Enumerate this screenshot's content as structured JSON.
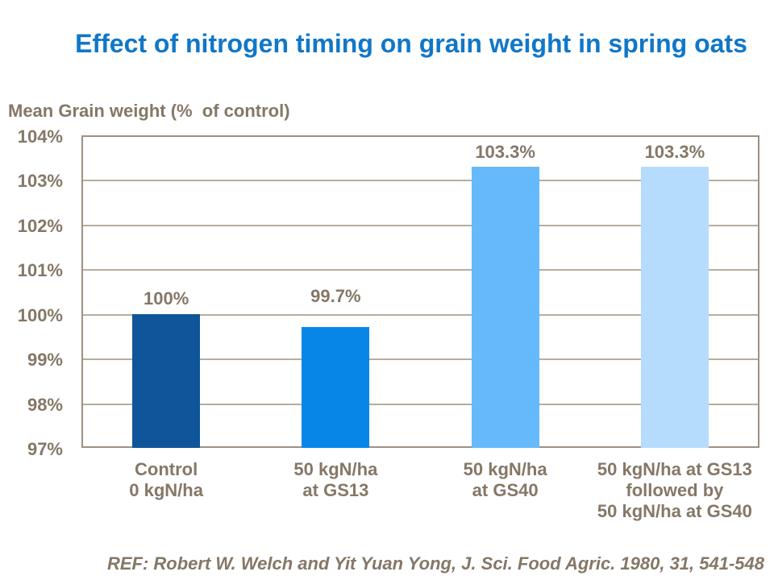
{
  "title": "Effect of nitrogen timing on grain weight in spring oats",
  "y_axis_title": "Mean Grain weight (%  of control)",
  "reference": "REF: Robert W. Welch and Yit Yuan Yong, J. Sci. Food Agric. 1980, 31, 541-548",
  "colors": {
    "title_text": "#1077C8",
    "body_text": "#857767",
    "plot_frame": "#9E9181",
    "gridline": "#B6ADA0",
    "bars": [
      "#0E5699",
      "#0786E8",
      "#66B9FB",
      "#B5DCFC"
    ]
  },
  "chart_data": {
    "type": "bar",
    "title": "Effect of nitrogen timing on grain weight in spring oats",
    "xlabel": "",
    "ylabel": "Mean Grain weight (% of control)",
    "categories": [
      "Control\n0 kgN/ha",
      "50 kgN/ha\nat GS13",
      "50 kgN/ha\nat GS40",
      "50 kgN/ha at GS13\nfollowed by\n50 kgN/ha at GS40"
    ],
    "values": [
      100,
      99.7,
      103.3,
      103.3
    ],
    "data_labels": [
      "100%",
      "99.7%",
      "103.3%",
      "103.3%"
    ],
    "ylim": [
      97,
      104
    ],
    "ytick_step": 1,
    "ytick_labels": [
      "104%",
      "103%",
      "102%",
      "101%",
      "100%",
      "99%",
      "98%",
      "97%"
    ],
    "grid": true,
    "legend": false,
    "annotation": "REF: Robert W. Welch and Yit Yuan Yong, J. Sci. Food Agric. 1980, 31, 541-548"
  }
}
